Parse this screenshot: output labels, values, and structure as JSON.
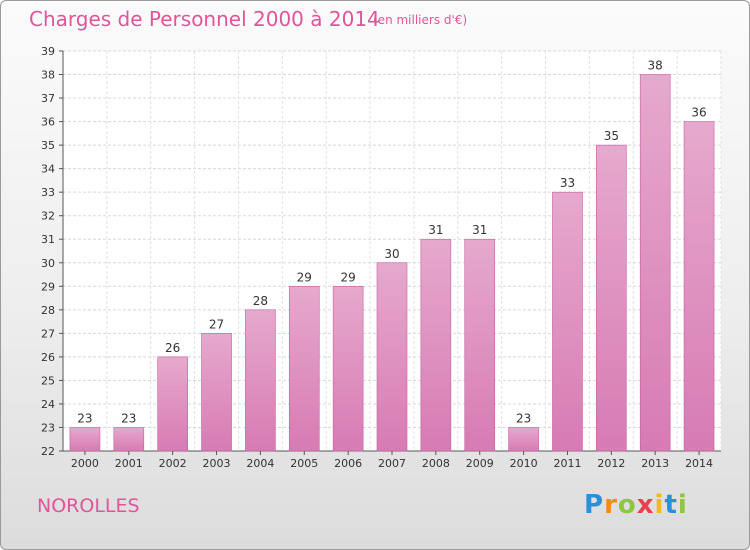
{
  "header": {
    "title": "Charges de Personnel 2000 à 2014",
    "subtitle": "(en milliers d'€)"
  },
  "footer": {
    "town": "NOROLLES",
    "logo_letters": [
      "P",
      "r",
      "o",
      "x",
      "i",
      "t",
      "i"
    ],
    "logo_colors": [
      "#2d8fd5",
      "#f08a1c",
      "#8dc63f",
      "#e8404f",
      "#f5b81b",
      "#2d8fd5",
      "#8dc63f"
    ]
  },
  "colors": {
    "bar": "#d77bb3",
    "bar_light": "#e6a9cd",
    "title": "#e0559a"
  },
  "chart_data": {
    "type": "bar",
    "title": "Charges de Personnel 2000 à 2014",
    "subtitle": "(en milliers d'€)",
    "categories": [
      "2000",
      "2001",
      "2002",
      "2003",
      "2004",
      "2005",
      "2006",
      "2007",
      "2008",
      "2009",
      "2010",
      "2011",
      "2012",
      "2013",
      "2014"
    ],
    "values": [
      23,
      23,
      26,
      27,
      28,
      29,
      29,
      30,
      31,
      31,
      23,
      33,
      35,
      38,
      36
    ],
    "ylim": [
      22,
      39
    ],
    "yticks": [
      22,
      23,
      24,
      25,
      26,
      27,
      28,
      29,
      30,
      31,
      32,
      33,
      34,
      35,
      36,
      37,
      38,
      39
    ],
    "grid": true,
    "legend": "none"
  }
}
